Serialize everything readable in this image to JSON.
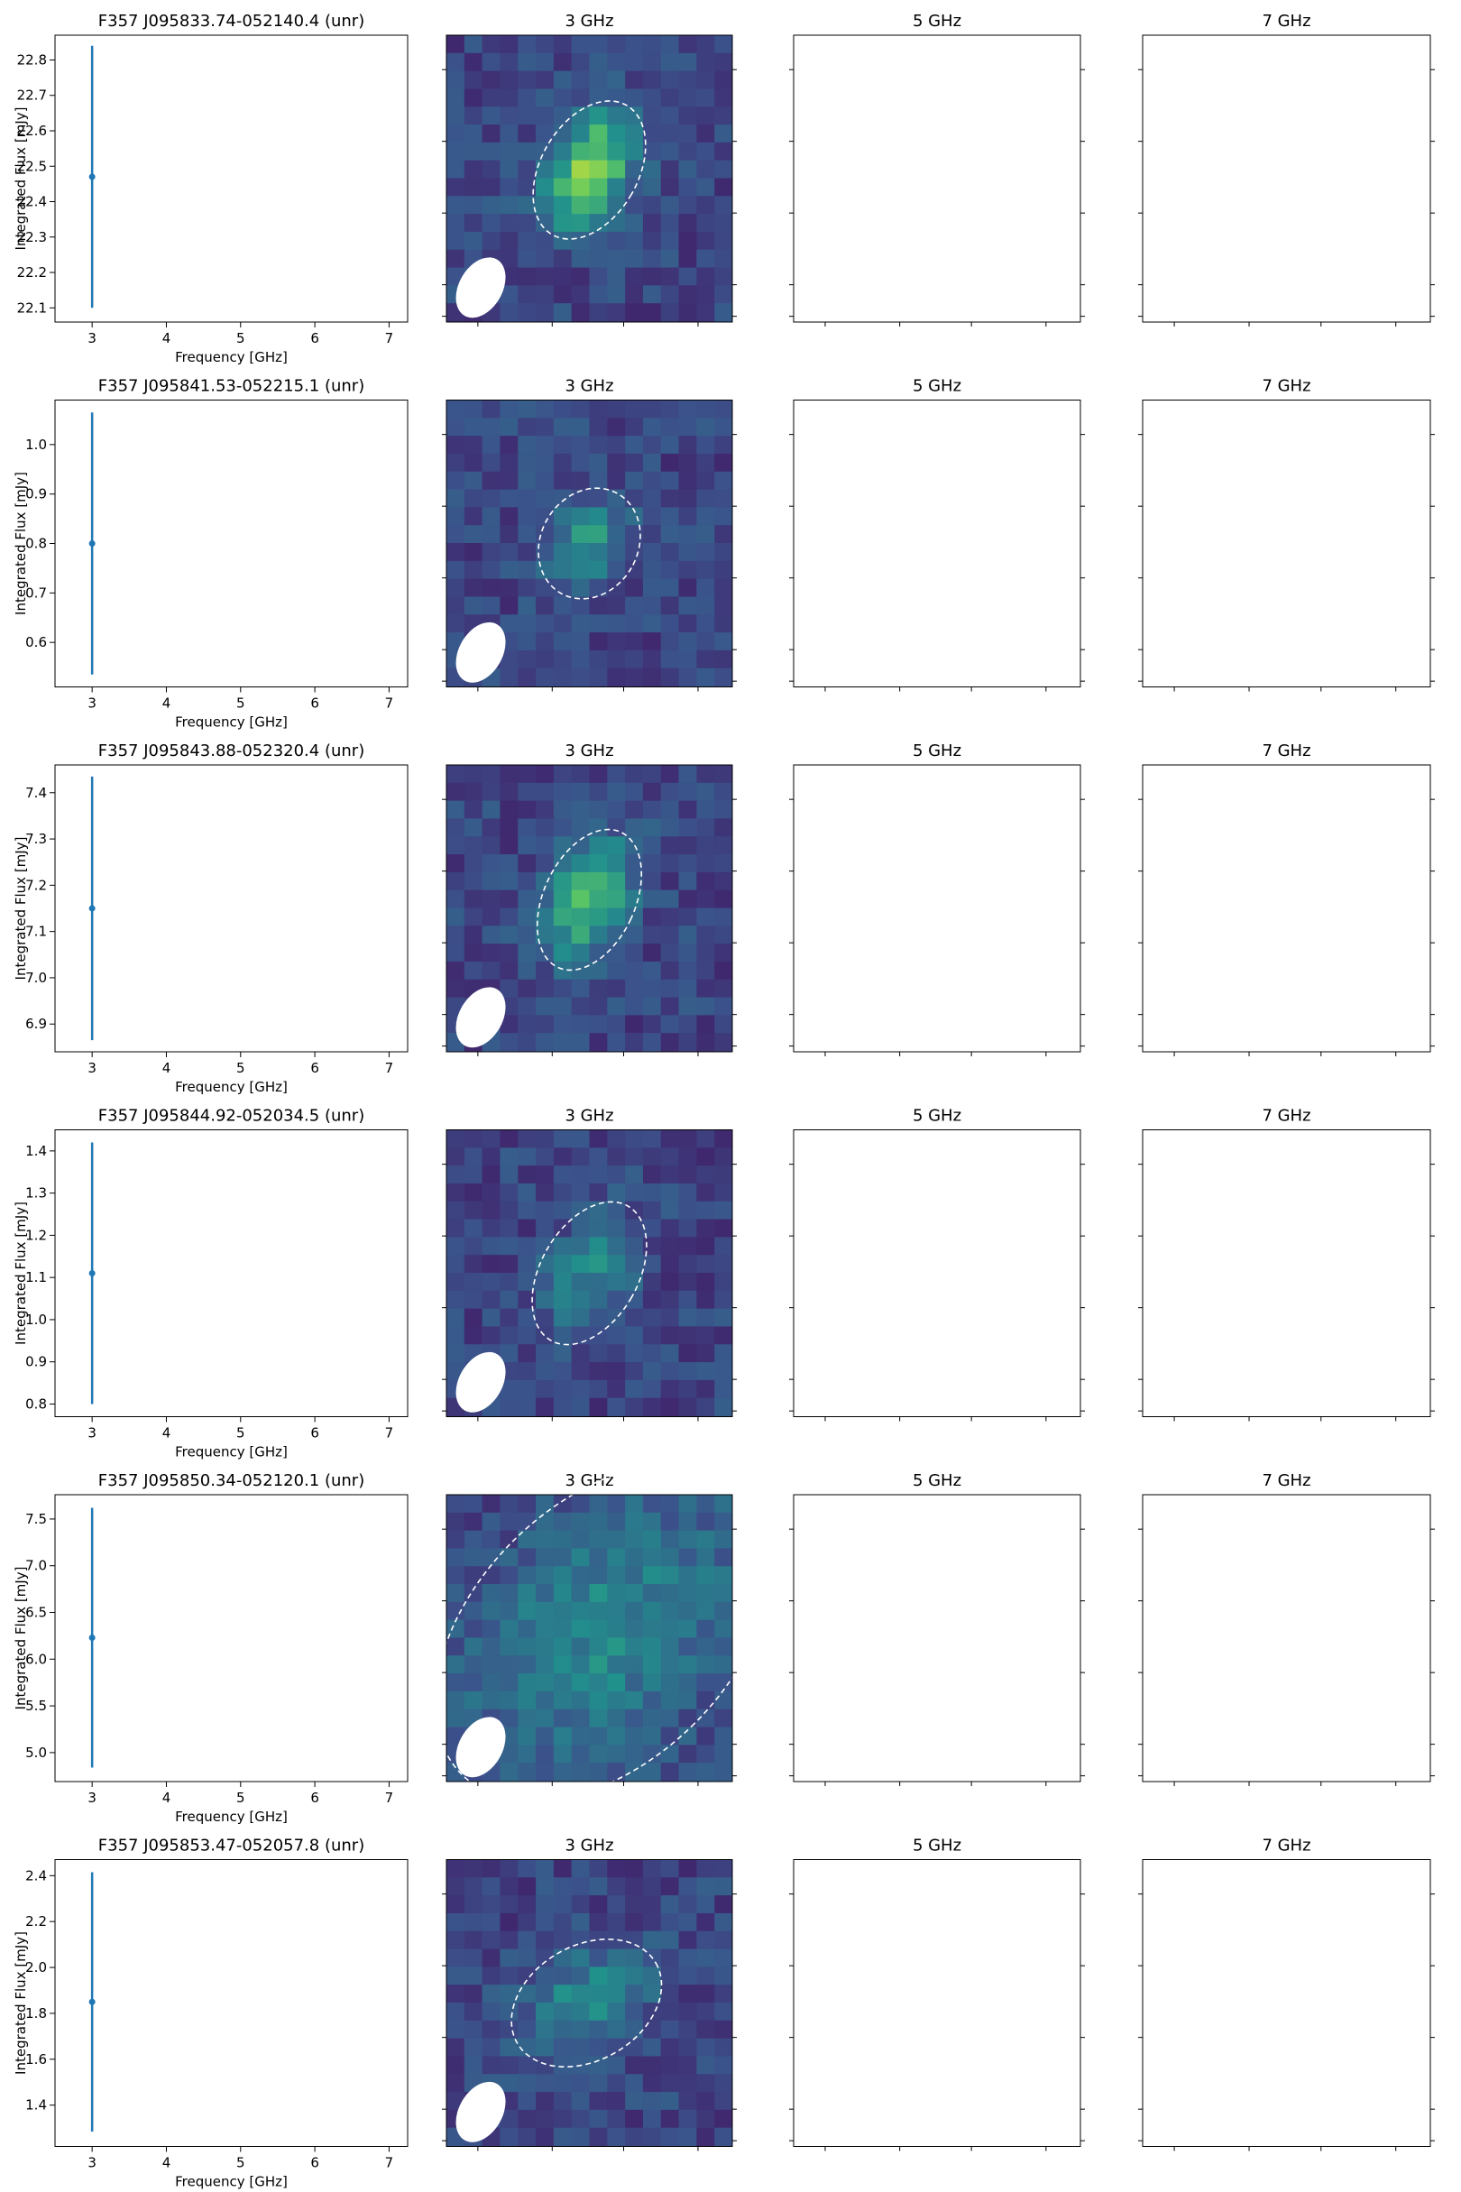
{
  "chart_data": [
    {
      "type": "errorbar",
      "title": "F357 J095833.74-052140.4 (unr)",
      "xlabel": "Frequency [GHz]",
      "ylabel": "Integrated Flux [mJy]",
      "x": [
        3
      ],
      "values": [
        22.47
      ],
      "errors": [
        0.37
      ],
      "color": "#1f77b4",
      "xlim": [
        2.5,
        7.25
      ],
      "xticks": [
        3,
        4,
        5,
        6,
        7
      ],
      "ylim": [
        22.06,
        22.87
      ],
      "yticks": [
        22.1,
        22.2,
        22.3,
        22.4,
        22.5,
        22.6,
        22.7,
        22.8
      ],
      "panel_titles": [
        "3 GHz",
        "5 GHz",
        "7 GHz"
      ]
    },
    {
      "type": "errorbar",
      "title": "F357 J095841.53-052215.1 (unr)",
      "xlabel": "Frequency [GHz]",
      "ylabel": "Integrated Flux [mJy]",
      "x": [
        3
      ],
      "values": [
        0.8
      ],
      "errors": [
        0.265
      ],
      "color": "#1f77b4",
      "xlim": [
        2.5,
        7.25
      ],
      "xticks": [
        3,
        4,
        5,
        6,
        7
      ],
      "ylim": [
        0.51,
        1.09
      ],
      "yticks": [
        0.6,
        0.7,
        0.8,
        0.9,
        {
          "value": 1,
          "label": "1.0"
        }
      ],
      "panel_titles": [
        "3 GHz",
        "5 GHz",
        "7 GHz"
      ]
    },
    {
      "type": "errorbar",
      "title": "F357 J095843.88-052320.4 (unr)",
      "xlabel": "Frequency [GHz]",
      "ylabel": "Integrated Flux [mJy]",
      "x": [
        3
      ],
      "values": [
        7.15
      ],
      "errors": [
        0.285
      ],
      "color": "#1f77b4",
      "xlim": [
        2.5,
        7.25
      ],
      "xticks": [
        3,
        4,
        5,
        6,
        7
      ],
      "ylim": [
        6.84,
        7.46
      ],
      "yticks": [
        6.9,
        {
          "value": 7,
          "label": "7.0"
        },
        7.1,
        7.2,
        7.3,
        7.4
      ],
      "panel_titles": [
        "3 GHz",
        "5 GHz",
        "7 GHz"
      ]
    },
    {
      "type": "errorbar",
      "title": "F357 J095844.92-052034.5 (unr)",
      "xlabel": "Frequency [GHz]",
      "ylabel": "Integrated Flux [mJy]",
      "x": [
        3
      ],
      "values": [
        1.11
      ],
      "errors": [
        0.31
      ],
      "color": "#1f77b4",
      "xlim": [
        2.5,
        7.25
      ],
      "xticks": [
        3,
        4,
        5,
        6,
        7
      ],
      "ylim": [
        0.77,
        1.45
      ],
      "yticks": [
        0.8,
        0.9,
        {
          "value": 1,
          "label": "1.0"
        },
        1.1,
        1.2,
        1.3,
        1.4
      ],
      "panel_titles": [
        "3 GHz",
        "5 GHz",
        "7 GHz"
      ]
    },
    {
      "type": "errorbar",
      "title": "F357 J095850.34-052120.1 (unr)",
      "xlabel": "Frequency [GHz]",
      "ylabel": "Integrated Flux [mJy]",
      "x": [
        3
      ],
      "values": [
        6.23
      ],
      "errors": [
        1.39
      ],
      "color": "#1f77b4",
      "xlim": [
        2.5,
        7.25
      ],
      "xticks": [
        3,
        4,
        5,
        6,
        7
      ],
      "ylim": [
        4.69,
        7.76
      ],
      "yticks": [
        {
          "value": 5,
          "label": "5.0"
        },
        5.5,
        {
          "value": 6,
          "label": "6.0"
        },
        6.5,
        {
          "value": 7,
          "label": "7.0"
        },
        7.5
      ],
      "panel_titles": [
        "3 GHz",
        "5 GHz",
        "7 GHz"
      ]
    },
    {
      "type": "errorbar",
      "title": "F357 J095853.47-052057.8 (unr)",
      "xlabel": "Frequency [GHz]",
      "ylabel": "Integrated Flux [mJy]",
      "x": [
        3
      ],
      "values": [
        1.85
      ],
      "errors": [
        0.565
      ],
      "color": "#1f77b4",
      "xlim": [
        2.5,
        7.25
      ],
      "xticks": [
        3,
        4,
        5,
        6,
        7
      ],
      "ylim": [
        1.22,
        2.47
      ],
      "yticks": [
        1.4,
        1.6,
        1.8,
        {
          "value": 2,
          "label": "2.0"
        },
        2.2,
        2.4
      ],
      "panel_titles": [
        "3 GHz",
        "5 GHz",
        "7 GHz"
      ]
    }
  ]
}
